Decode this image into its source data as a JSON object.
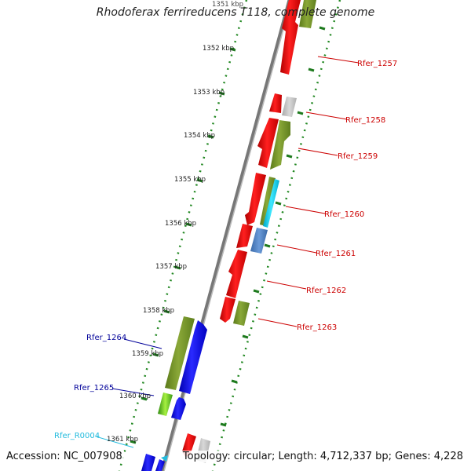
{
  "title": "Rhodoferax ferrireducens T118, complete genome",
  "footer": {
    "accession": "Accession: NC_007908",
    "summary": "Topology: circular; Length: 4,712,337 bp; Genes: 4,228"
  },
  "colors": {
    "forward_label": "#cc0000",
    "reverse_label": "#000099",
    "rna_label": "#22bbdd",
    "tick": "#228822",
    "backbone": "#888888"
  },
  "scale_ticks": [
    "1351 kbp",
    "1352 kbp",
    "1353 kbp",
    "1354 kbp",
    "1355 kbp",
    "1356 kbp",
    "1357 kbp",
    "1358 kbp",
    "1359 kbp",
    "1360 kbp",
    "1361 kbp"
  ],
  "gene_labels": [
    {
      "text": "Rfer_1257",
      "strand": "forward"
    },
    {
      "text": "Rfer_1258",
      "strand": "forward"
    },
    {
      "text": "Rfer_1259",
      "strand": "forward"
    },
    {
      "text": "Rfer_1260",
      "strand": "forward"
    },
    {
      "text": "Rfer_1261",
      "strand": "forward"
    },
    {
      "text": "Rfer_1262",
      "strand": "forward"
    },
    {
      "text": "Rfer_1263",
      "strand": "forward"
    },
    {
      "text": "Rfer_1264",
      "strand": "reverse"
    },
    {
      "text": "Rfer_1265",
      "strand": "reverse"
    },
    {
      "text": "Rfer_R0004",
      "strand": "rna"
    }
  ]
}
